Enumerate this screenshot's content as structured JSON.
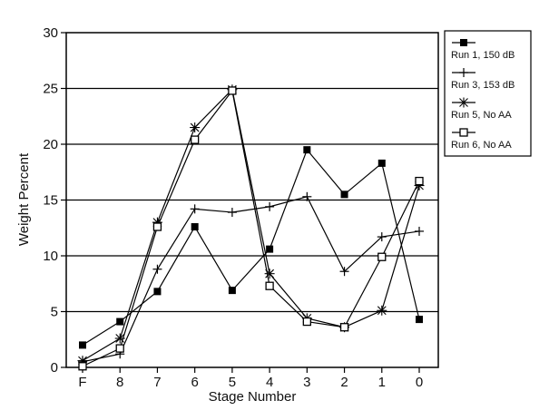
{
  "chart_data": {
    "type": "line",
    "xlabel": "Stage Number",
    "ylabel": "Weight Percent",
    "categories": [
      "F",
      "8",
      "7",
      "6",
      "5",
      "4",
      "3",
      "2",
      "1",
      "0"
    ],
    "ylim": [
      0,
      30
    ],
    "yticks": [
      0,
      5,
      10,
      15,
      20,
      25,
      30
    ],
    "grid": "horizontal",
    "legend_position": "right",
    "series": [
      {
        "name": "Run 1, 150 dB",
        "marker": "filled-square",
        "values": [
          2.0,
          4.1,
          6.8,
          12.6,
          6.9,
          10.6,
          19.5,
          15.5,
          18.3,
          4.3
        ]
      },
      {
        "name": "Run 3, 153 dB",
        "marker": "plus",
        "values": [
          0.5,
          1.2,
          8.8,
          14.2,
          13.9,
          14.4,
          15.3,
          8.6,
          11.7,
          12.2
        ]
      },
      {
        "name": "Run 5, No AA",
        "marker": "asterisk",
        "values": [
          0.6,
          2.6,
          13.0,
          21.5,
          24.9,
          8.4,
          4.4,
          3.6,
          5.1,
          16.3
        ]
      },
      {
        "name": "Run 6, No AA",
        "marker": "open-square",
        "values": [
          0.1,
          1.7,
          12.6,
          20.4,
          24.8,
          7.3,
          4.1,
          3.6,
          9.9,
          16.7
        ]
      }
    ]
  }
}
